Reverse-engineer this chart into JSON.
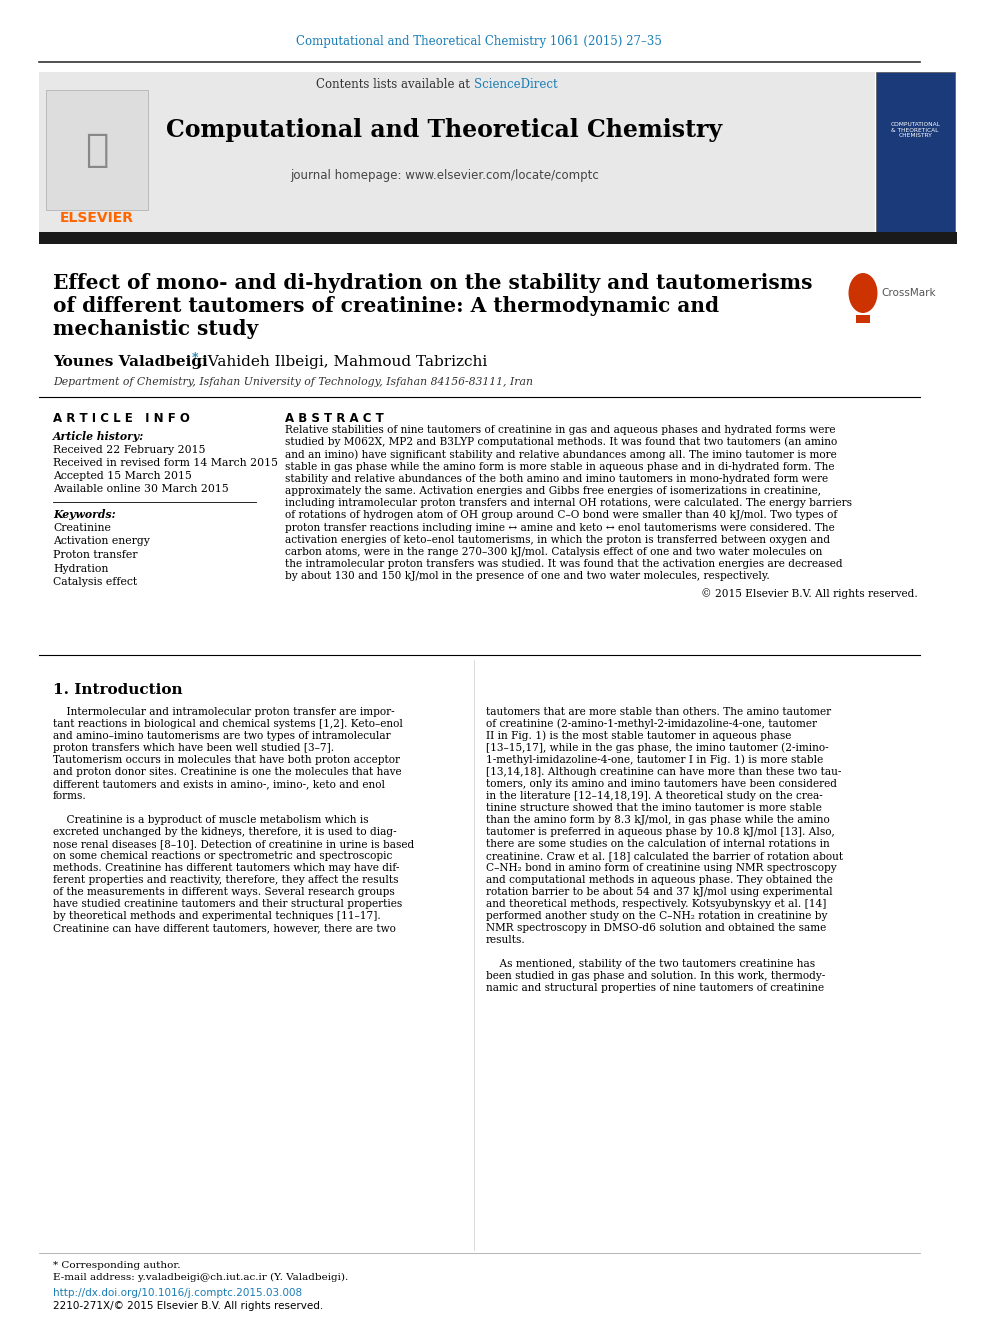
{
  "page_bg": "#ffffff",
  "top_citation": "Computational and Theoretical Chemistry 1061 (2015) 27–35",
  "top_citation_color": "#1a7db5",
  "header_bg": "#e8e8e8",
  "contents_text": "Contents lists available at ",
  "sciencedirect_text": "ScienceDirect",
  "sciencedirect_color": "#1a7db5",
  "journal_title": "Computational and Theoretical Chemistry",
  "journal_homepage": "journal homepage: www.elsevier.com/locate/comptc",
  "article_title_line1": "Effect of mono- and di-hydration on the stability and tautomerisms",
  "article_title_line2": "of different tautomers of creatinine: A thermodynamic and",
  "article_title_line3": "mechanistic study",
  "authors_display": "Younes Valadbeigi",
  "authors_rest": ", Vahideh Ilbeigi, Mahmoud Tabrizchi",
  "affiliation": "Department of Chemistry, Isfahan University of Technology, Isfahan 84156-83111, Iran",
  "article_info_label": "A R T I C L E   I N F O",
  "abstract_label": "A B S T R A C T",
  "article_history_label": "Article history:",
  "received_date": "Received 22 February 2015",
  "revised_date": "Received in revised form 14 March 2015",
  "accepted_date": "Accepted 15 March 2015",
  "online_date": "Available online 30 March 2015",
  "keywords_label": "Keywords:",
  "keywords": [
    "Creatinine",
    "Activation energy",
    "Proton transfer",
    "Hydration",
    "Catalysis effect"
  ],
  "copyright": "© 2015 Elsevier B.V. All rights reserved.",
  "intro_title": "1. Introduction",
  "footer_corresponding": "* Corresponding author.",
  "footer_email": "E-mail address: y.valadbeigi@ch.iut.ac.ir (Y. Valadbeigi).",
  "footer_doi": "http://dx.doi.org/10.1016/j.comptc.2015.03.008",
  "footer_issn": "2210-271X/© 2015 Elsevier B.V. All rights reserved.",
  "elsevier_color": "#ff6600",
  "dark_bar_color": "#1a1a1a",
  "link_color": "#1a7db5",
  "abstract_lines": [
    "Relative stabilities of nine tautomers of creatinine in gas and aqueous phases and hydrated forms were",
    "studied by M062X, MP2 and B3LYP computational methods. It was found that two tautomers (an amino",
    "and an imino) have significant stability and relative abundances among all. The imino tautomer is more",
    "stable in gas phase while the amino form is more stable in aqueous phase and in di-hydrated form. The",
    "stability and relative abundances of the both amino and imino tautomers in mono-hydrated form were",
    "approximately the same. Activation energies and Gibbs free energies of isomerizations in creatinine,",
    "including intramolecular proton transfers and internal OH rotations, were calculated. The energy barriers",
    "of rotations of hydrogen atom of OH group around C–O bond were smaller than 40 kJ/mol. Two types of",
    "proton transfer reactions including imine ↔ amine and keto ↔ enol tautomerisms were considered. The",
    "activation energies of keto–enol tautomerisms, in which the proton is transferred between oxygen and",
    "carbon atoms, were in the range 270–300 kJ/mol. Catalysis effect of one and two water molecules on",
    "the intramolecular proton transfers was studied. It was found that the activation energies are decreased",
    "by about 130 and 150 kJ/mol in the presence of one and two water molecules, respectively."
  ],
  "intro_col1_lines": [
    "    Intermolecular and intramolecular proton transfer are impor-",
    "tant reactions in biological and chemical systems [1,2]. Keto–enol",
    "and amino–imino tautomerisms are two types of intramolecular",
    "proton transfers which have been well studied [3–7].",
    "Tautomerism occurs in molecules that have both proton acceptor",
    "and proton donor sites. Creatinine is one the molecules that have",
    "different tautomers and exists in amino-, imino-, keto and enol",
    "forms.",
    "",
    "    Creatinine is a byproduct of muscle metabolism which is",
    "excreted unchanged by the kidneys, therefore, it is used to diag-",
    "nose renal diseases [8–10]. Detection of creatinine in urine is based",
    "on some chemical reactions or spectrometric and spectroscopic",
    "methods. Creatinine has different tautomers which may have dif-",
    "ferent properties and reactivity, therefore, they affect the results",
    "of the measurements in different ways. Several research groups",
    "have studied creatinine tautomers and their structural properties",
    "by theoretical methods and experimental techniques [11–17].",
    "Creatinine can have different tautomers, however, there are two"
  ],
  "intro_col2_lines": [
    "tautomers that are more stable than others. The amino tautomer",
    "of creatinine (2-amino-1-methyl-2-imidazoline-4-one, tautomer",
    "II in Fig. 1) is the most stable tautomer in aqueous phase",
    "[13–15,17], while in the gas phase, the imino tautomer (2-imino-",
    "1-methyl-imidazoline-4-one, tautomer I in Fig. 1) is more stable",
    "[13,14,18]. Although creatinine can have more than these two tau-",
    "tomers, only its amino and imino tautomers have been considered",
    "in the literature [12–14,18,19]. A theoretical study on the crea-",
    "tinine structure showed that the imino tautomer is more stable",
    "than the amino form by 8.3 kJ/mol, in gas phase while the amino",
    "tautomer is preferred in aqueous phase by 10.8 kJ/mol [13]. Also,",
    "there are some studies on the calculation of internal rotations in",
    "creatinine. Craw et al. [18] calculated the barrier of rotation about",
    "C–NH₂ bond in amino form of creatinine using NMR spectroscopy",
    "and computational methods in aqueous phase. They obtained the",
    "rotation barrier to be about 54 and 37 kJ/mol using experimental",
    "and theoretical methods, respectively. Kotsyubynskyy et al. [14]",
    "performed another study on the C–NH₂ rotation in creatinine by",
    "NMR spectroscopy in DMSO-d6 solution and obtained the same",
    "results.",
    "",
    "    As mentioned, stability of the two tautomers creatinine has",
    "been studied in gas phase and solution. In this work, thermody-",
    "namic and structural properties of nine tautomers of creatinine"
  ]
}
